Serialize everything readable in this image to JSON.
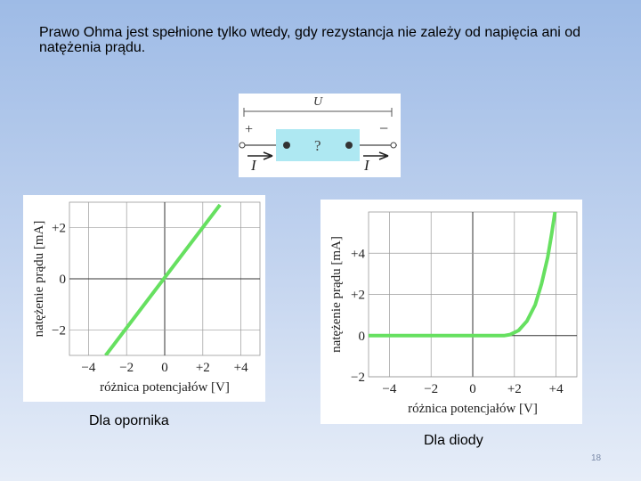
{
  "slide": {
    "title": "Prawo Ohma jest spełnione tylko wtedy, gdy rezystancja nie zależy od napięcia ani od natężenia prądu.",
    "caption_resistor": "Dla opornika",
    "caption_diode": "Dla diody",
    "page_number": "18"
  },
  "circuit": {
    "voltage_label": "U",
    "plus_sign": "+",
    "minus_sign": "−",
    "element_label": "?",
    "current_label_left": "I",
    "current_label_right": "I",
    "element_color": "#aee8f2"
  },
  "colors": {
    "curve": "#66e060",
    "grid": "#9a9a9a",
    "axis": "#333333"
  },
  "chart_data": [
    {
      "type": "line",
      "title": "",
      "xlabel": "różnica potencjałów [V]",
      "ylabel": "natężenie prądu [mA]",
      "xlim": [
        -5,
        5
      ],
      "ylim": [
        -3,
        3
      ],
      "xticks": [
        -4,
        -2,
        0,
        2,
        4
      ],
      "xtick_labels": [
        "−4",
        "−2",
        "0",
        "+2",
        "+4"
      ],
      "yticks": [
        -2,
        0,
        2
      ],
      "ytick_labels": [
        "−2",
        "0",
        "+2"
      ],
      "grid": true,
      "series": [
        {
          "x": [
            -3.1,
            2.9
          ],
          "y": [
            -3.0,
            2.9
          ]
        }
      ]
    },
    {
      "type": "line",
      "title": "",
      "xlabel": "różnica potencjałów [V]",
      "ylabel": "natężenie prądu [mA]",
      "xlim": [
        -5,
        5
      ],
      "ylim": [
        -2,
        6
      ],
      "xticks": [
        -4,
        -2,
        0,
        2,
        4
      ],
      "xtick_labels": [
        "−4",
        "−2",
        "0",
        "+2",
        "+4"
      ],
      "yticks": [
        -2,
        0,
        2,
        4
      ],
      "ytick_labels": [
        "−2",
        "0",
        "+2",
        "+4"
      ],
      "grid": true,
      "series": [
        {
          "x": [
            -5,
            1.5,
            1.8,
            2.2,
            2.6,
            3.0,
            3.3,
            3.6,
            3.8,
            3.95
          ],
          "y": [
            0,
            0,
            0.05,
            0.25,
            0.7,
            1.5,
            2.5,
            3.8,
            5.0,
            6.0
          ]
        }
      ]
    }
  ]
}
